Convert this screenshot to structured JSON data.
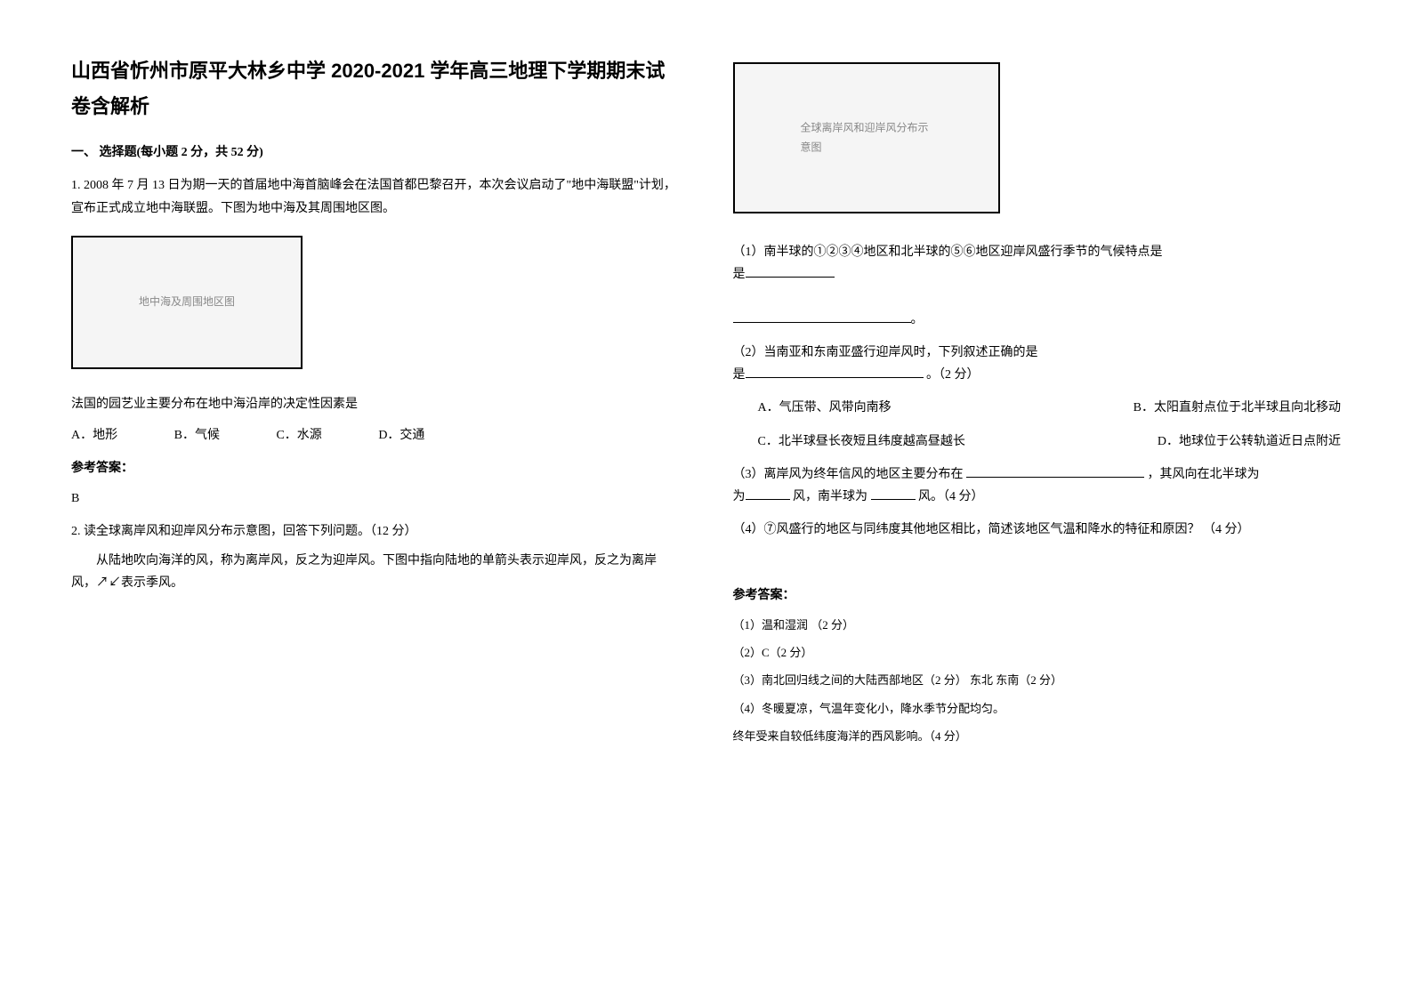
{
  "title": "山西省忻州市原平大林乡中学 2020-2021 学年高三地理下学期期末试卷含解析",
  "section1": {
    "heading": "一、 选择题(每小题 2 分，共 52 分)"
  },
  "q1": {
    "stem": "1. 2008 年 7 月 13 日为期一天的首届地中海首脑峰会在法国首都巴黎召开，本次会议启动了\"地中海联盟\"计划，宣布正式成立地中海联盟。下图为地中海及其周围地区图。",
    "fig_note": "地中海及周围地区图",
    "sub": "法国的园艺业主要分布在地中海沿岸的决定性因素是",
    "optA": "A．地形",
    "optB": "B．气候",
    "optC": "C．水源",
    "optD": "D．交通",
    "answer_label": "参考答案：",
    "answer": "B"
  },
  "q2": {
    "stem": "2. 读全球离岸风和迎岸风分布示意图，回答下列问题。（12 分）",
    "desc": "从陆地吹向海洋的风，称为离岸风，反之为迎岸风。下图中指向陆地的单箭头表示迎岸风，反之为离岸风，↗↙表示季风。",
    "fig_note": "全球离岸风和迎岸风分布示意图",
    "sub1_pre": "（1）南半球的①②③④地区和北半球的⑤⑥地区迎岸风盛行季节的气候特点是",
    "sub2_pre": "（2）当南亚和东南亚盛行迎岸风时，下列叙述正确的是",
    "sub2_score": "。（2 分）",
    "sub2_optA": "A．气压带、风带向南移",
    "sub2_optB": "B．太阳直射点位于北半球且向北移动",
    "sub2_optC": "C．北半球昼长夜短且纬度越高昼越长",
    "sub2_optD": "D．地球位于公转轨道近日点附近",
    "sub3_pre": "（3）离岸风为终年信风的地区主要分布在",
    "sub3_mid": "，其风向在北半球为",
    "sub3_mid2": "风，南半球为",
    "sub3_end": "风。（4 分）",
    "sub4": "（4）⑦风盛行的地区与同纬度其他地区相比，简述该地区气温和降水的特征和原因？ （4 分）",
    "answer_label": "参考答案：",
    "ans1": "（1）温和湿润   （2 分）",
    "ans2": "（2）C（2 分）",
    "ans3": "（3）南北回归线之间的大陆西部地区（2 分）    东北   东南（2 分）",
    "ans4": "（4）冬暖夏凉，气温年变化小，降水季节分配均匀。",
    "ans4b": "终年受来自较低纬度海洋的西风影响。（4 分）"
  }
}
